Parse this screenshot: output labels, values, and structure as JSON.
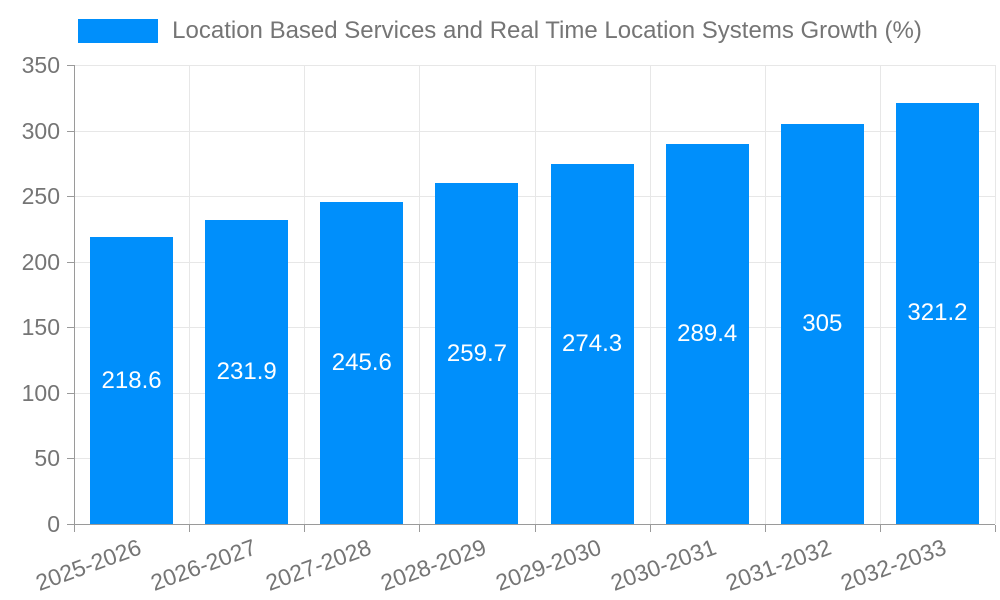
{
  "legend": {
    "label": "Location Based Services and Real Time Location Systems Growth (%)"
  },
  "colors": {
    "bar": "#008FFB",
    "axis_text": "#757575",
    "grid_line": "#e7e7e7",
    "axis_line": "#9a9a9a",
    "value_label": "#ffffff",
    "background": "#ffffff"
  },
  "chart_data": {
    "type": "bar",
    "title": "Location Based Services and Real Time Location Systems Growth (%)",
    "categories": [
      "2025-2026",
      "2026-2027",
      "2027-2028",
      "2028-2029",
      "2029-2030",
      "2030-2031",
      "2031-2032",
      "2032-2033"
    ],
    "values": [
      218.6,
      231.9,
      245.6,
      259.7,
      274.3,
      289.4,
      305,
      321.2
    ],
    "value_labels": [
      "218.6",
      "231.9",
      "245.6",
      "259.7",
      "274.3",
      "289.4",
      "305",
      "321.2"
    ],
    "xlabel": "",
    "ylabel": "",
    "ylim": [
      0,
      350
    ],
    "ytick_step": 50,
    "yticks": [
      0,
      50,
      100,
      150,
      200,
      250,
      300,
      350
    ],
    "grid": true,
    "legend_position": "top",
    "value_label_position": "center-inside",
    "x_tick_label_rotation_deg": -20
  }
}
